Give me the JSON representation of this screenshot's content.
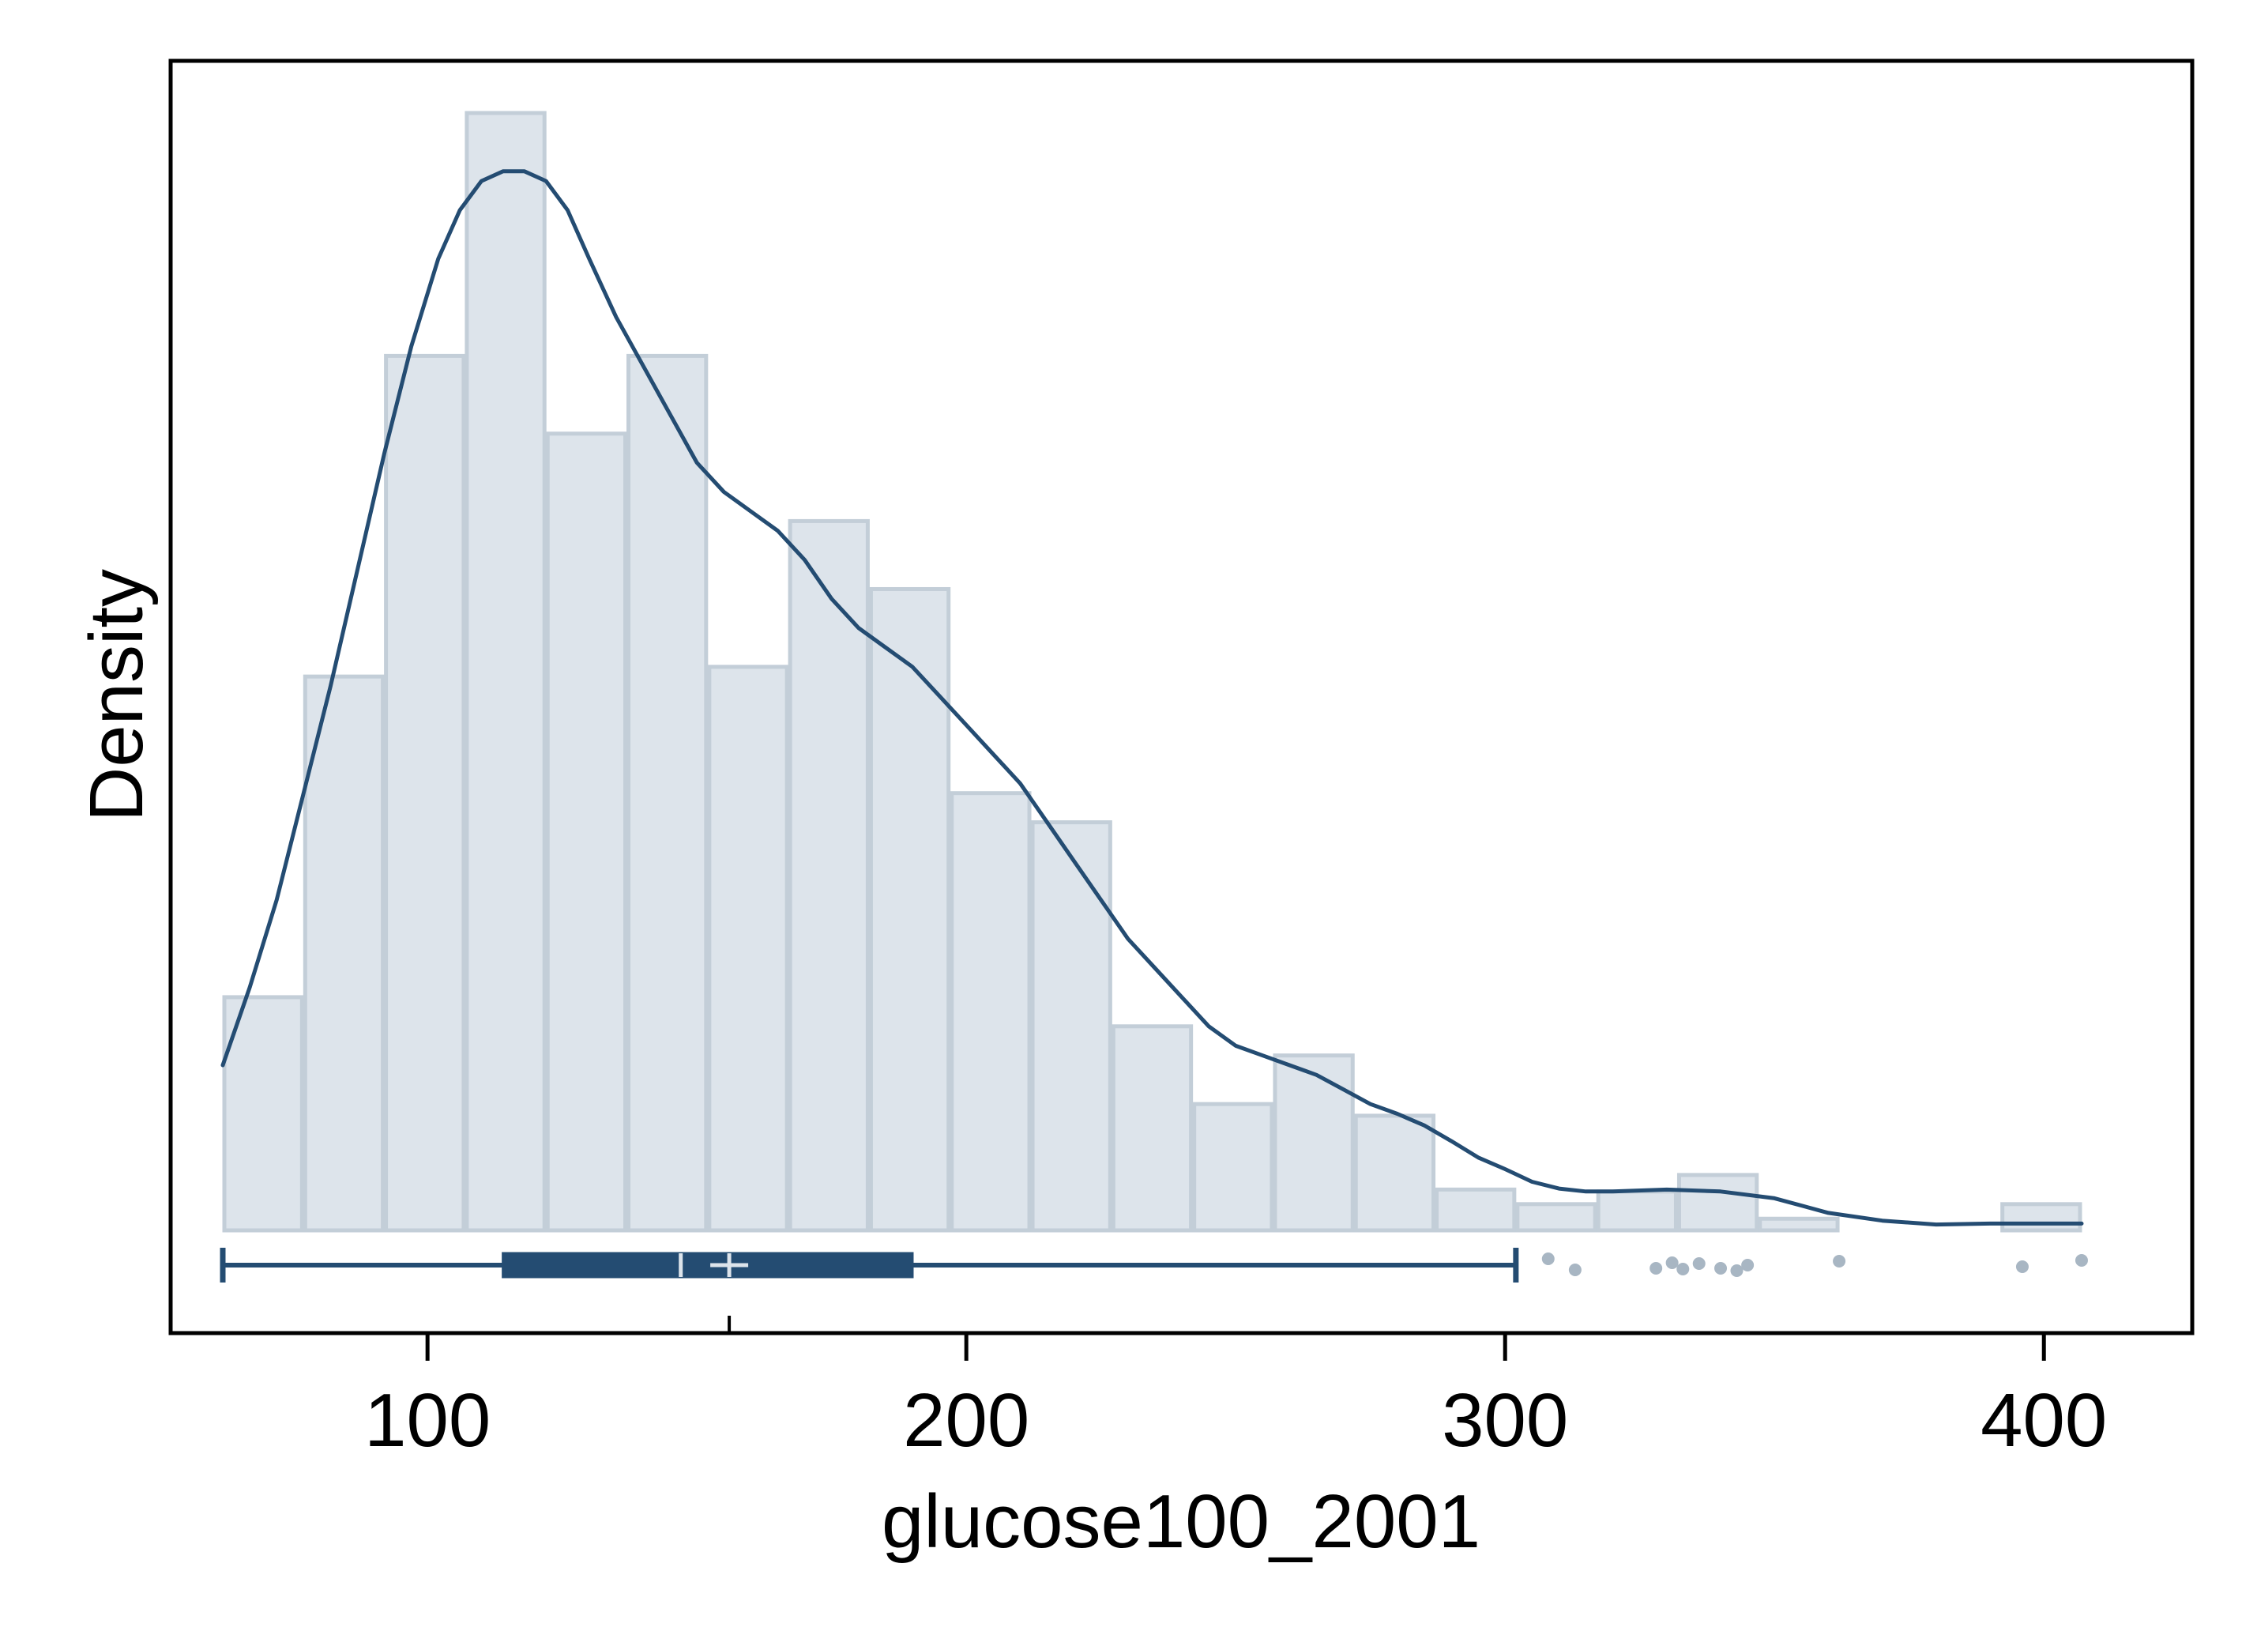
{
  "chart_data": {
    "type": "histogram",
    "xlabel": "glucose100_2001",
    "ylabel": "Density",
    "xlim": [
      62,
      418
    ],
    "ylim": [
      0,
      1.155
    ],
    "x_ticks": [
      100,
      200,
      300,
      400
    ],
    "x_tick_labels": [
      "100",
      "200",
      "300",
      "400"
    ],
    "y_ticks": [],
    "grid": false,
    "legend": "none",
    "histogram": {
      "bin_edges": [
        62,
        77,
        92,
        107,
        122,
        137,
        152,
        167,
        182,
        197,
        212,
        227,
        242,
        257,
        272,
        287,
        302,
        317,
        332,
        347,
        362,
        377,
        392,
        407
      ],
      "heights": [
        0.24,
        0.57,
        0.9,
        1.15,
        0.82,
        0.9,
        0.58,
        0.73,
        0.66,
        0.45,
        0.42,
        0.21,
        0.13,
        0.18,
        0.118,
        0.042,
        0.027,
        0.04,
        0.057,
        0.012,
        0.0,
        0.0,
        0.027
      ]
    },
    "kde": {
      "x": [
        62,
        67,
        72,
        77,
        82,
        87,
        92,
        97,
        102,
        106,
        110,
        114,
        118,
        122,
        126,
        130,
        135,
        140,
        145,
        150,
        155,
        160,
        165,
        170,
        175,
        180,
        185,
        190,
        195,
        200,
        205,
        210,
        215,
        220,
        225,
        230,
        235,
        240,
        245,
        250,
        255,
        260,
        265,
        270,
        275,
        280,
        285,
        290,
        295,
        300,
        305,
        310,
        315,
        320,
        330,
        340,
        350,
        360,
        370,
        380,
        390,
        400,
        407
      ],
      "y": [
        0.17,
        0.25,
        0.34,
        0.45,
        0.56,
        0.68,
        0.8,
        0.91,
        1.0,
        1.05,
        1.08,
        1.09,
        1.09,
        1.08,
        1.05,
        1.0,
        0.94,
        0.89,
        0.84,
        0.79,
        0.76,
        0.74,
        0.72,
        0.69,
        0.65,
        0.62,
        0.6,
        0.58,
        0.55,
        0.52,
        0.49,
        0.46,
        0.42,
        0.38,
        0.34,
        0.3,
        0.27,
        0.24,
        0.21,
        0.19,
        0.18,
        0.17,
        0.16,
        0.145,
        0.13,
        0.12,
        0.108,
        0.092,
        0.075,
        0.063,
        0.05,
        0.043,
        0.04,
        0.04,
        0.042,
        0.04,
        0.033,
        0.018,
        0.01,
        0.006,
        0.007,
        0.007,
        0.007
      ]
    },
    "boxplot": {
      "whisker_low": 62,
      "q1": 114,
      "median": 147,
      "mean": 156,
      "q3": 190,
      "whisker_high": 302,
      "outliers": [
        308,
        313,
        328,
        331,
        333,
        336,
        340,
        343,
        345,
        362,
        396,
        407
      ]
    },
    "colors": {
      "bar_fill": "#dde4eb",
      "bar_stroke": "#c3ced8",
      "line": "#244c72",
      "outlier": "#a8b6c3",
      "box_marks": "#dde4eb"
    }
  }
}
